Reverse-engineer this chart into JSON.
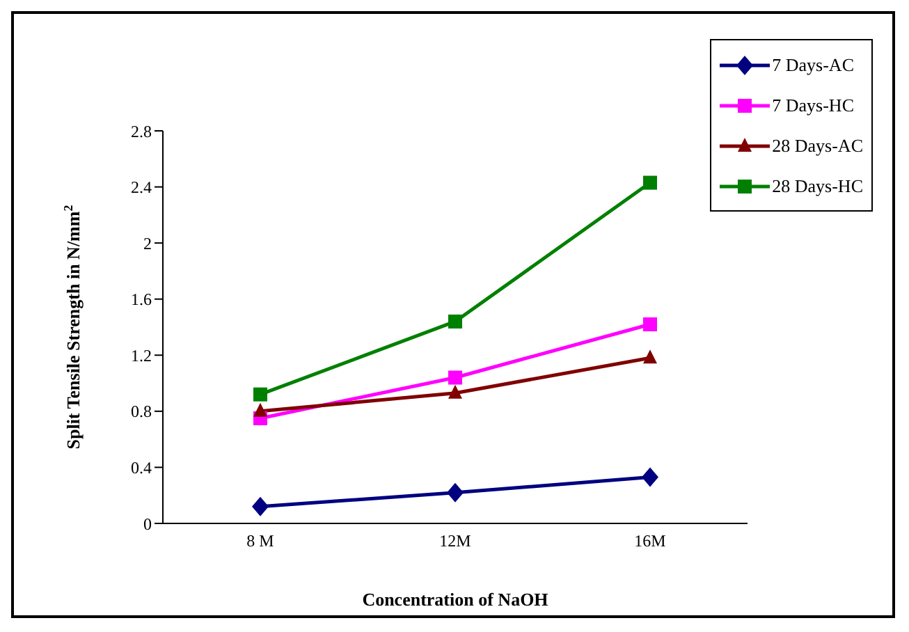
{
  "chart_data": {
    "type": "line",
    "xlabel": "Concentration of NaOH",
    "ylabel": "Split Tensile Strength in N/mm$^{2}$",
    "categories": [
      "8 M",
      "12M",
      "16M"
    ],
    "series": [
      {
        "name": "7 Days-AC",
        "color": "#000080",
        "marker": "diamond",
        "values": [
          0.12,
          0.22,
          0.33
        ]
      },
      {
        "name": "7 Days-HC",
        "color": "#ff00ff",
        "marker": "square",
        "values": [
          0.75,
          1.04,
          1.42
        ]
      },
      {
        "name": "28 Days-AC",
        "color": "#800000",
        "marker": "triangle",
        "values": [
          0.8,
          0.93,
          1.18
        ]
      },
      {
        "name": "28 Days-HC",
        "color": "#008000",
        "marker": "square",
        "values": [
          0.92,
          1.44,
          2.43
        ]
      }
    ],
    "ylim": [
      0,
      2.8
    ],
    "yticks": [
      0,
      0.4,
      0.8,
      1.2,
      1.6,
      2,
      2.4,
      2.8
    ],
    "grid": false,
    "legend": "top right"
  }
}
